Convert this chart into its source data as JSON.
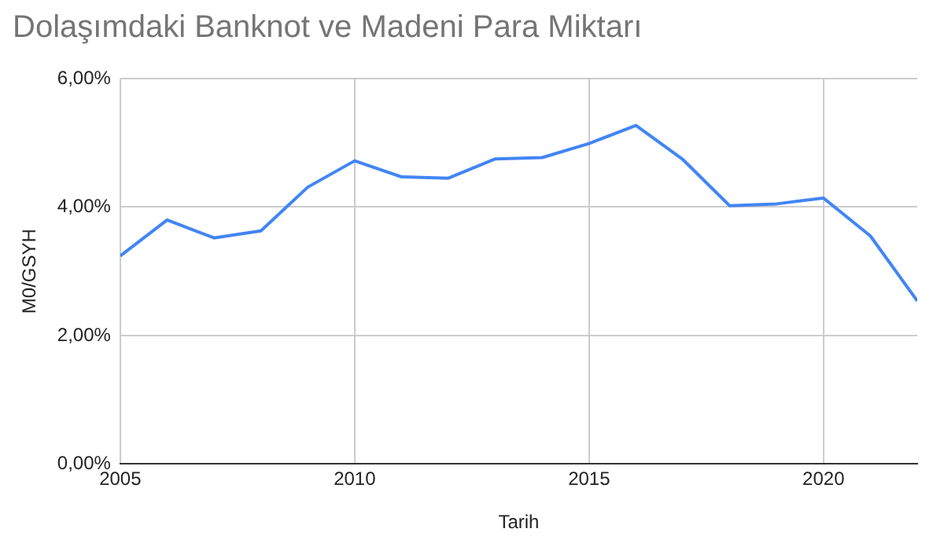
{
  "chart_data": {
    "type": "line",
    "title": "Dolaşımdaki Banknot ve Madeni Para Miktarı",
    "xlabel": "Tarih",
    "ylabel": "M0/GSYH",
    "x": [
      2005,
      2006,
      2007,
      2008,
      2009,
      2010,
      2011,
      2012,
      2013,
      2014,
      2015,
      2016,
      2017,
      2018,
      2019,
      2020,
      2021,
      2022
    ],
    "series": [
      {
        "color": "#4285f4",
        "values": [
          3.24,
          3.8,
          3.52,
          3.63,
          4.31,
          4.72,
          4.47,
          4.45,
          4.75,
          4.77,
          4.99,
          5.27,
          4.74,
          4.02,
          4.05,
          4.14,
          3.55,
          2.54
        ]
      }
    ],
    "xlim": [
      2005,
      2022
    ],
    "xticks": [
      2005,
      2010,
      2015,
      2020
    ],
    "ylim": [
      0,
      6
    ],
    "yticks": [
      {
        "value": 0,
        "label": "0,00%"
      },
      {
        "value": 2,
        "label": "2,00%"
      },
      {
        "value": 4,
        "label": "4,00%"
      },
      {
        "value": 6,
        "label": "6,00%"
      }
    ],
    "grid": true,
    "legend": false,
    "marker": "none",
    "line_style": "solid"
  }
}
